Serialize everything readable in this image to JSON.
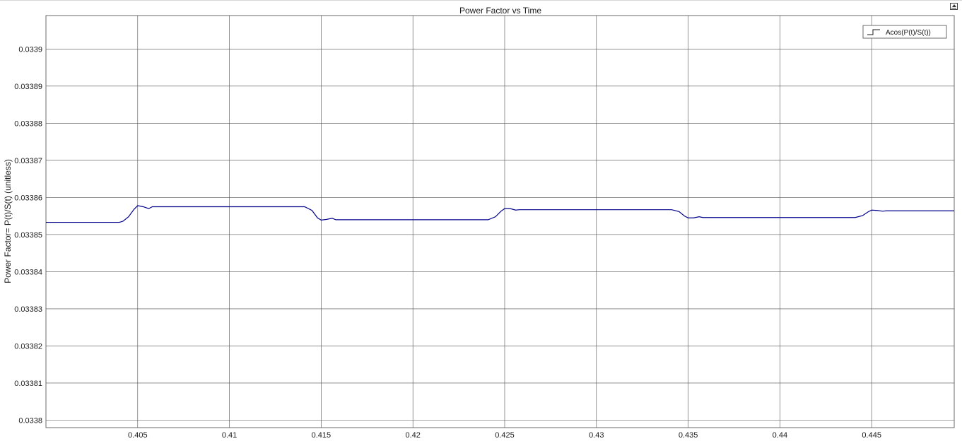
{
  "chart_data": {
    "type": "line",
    "title": "Power Factor vs Time",
    "xlabel": "",
    "ylabel": "Power Factor= P(t)/S(t) (unitless)",
    "xlim": [
      0.4,
      0.4495
    ],
    "ylim": [
      0.033798,
      0.033909
    ],
    "x_ticks": [
      0.405,
      0.41,
      0.415,
      0.42,
      0.425,
      0.43,
      0.435,
      0.44,
      0.445
    ],
    "x_tick_labels": [
      "0.405",
      "0.41",
      "0.415",
      "0.42",
      "0.425",
      "0.43",
      "0.435",
      "0.44",
      "0.445"
    ],
    "y_ticks": [
      0.0338,
      0.03381,
      0.03382,
      0.03383,
      0.03384,
      0.03385,
      0.03386,
      0.03387,
      0.03388,
      0.03389,
      0.0339
    ],
    "y_tick_labels": [
      "0.0338",
      "0.03381",
      "0.03382",
      "0.03383",
      "0.03384",
      "0.03385",
      "0.03386",
      "0.03387",
      "0.03388",
      "0.03389",
      "0.0339"
    ],
    "grid": true,
    "legend_position": "top-right",
    "series": [
      {
        "name": "Acos(P(t)/S(t))",
        "color": "#00008b",
        "x": [
          0.4,
          0.404,
          0.4042,
          0.4045,
          0.4048,
          0.405,
          0.4053,
          0.4056,
          0.4058,
          0.406,
          0.4141,
          0.4145,
          0.4148,
          0.415,
          0.4153,
          0.4156,
          0.4158,
          0.416,
          0.4241,
          0.4245,
          0.4248,
          0.425,
          0.4253,
          0.4256,
          0.4258,
          0.426,
          0.4341,
          0.4345,
          0.4348,
          0.435,
          0.4353,
          0.4356,
          0.4358,
          0.436,
          0.4441,
          0.4445,
          0.4448,
          0.445,
          0.4453,
          0.4456,
          0.4458,
          0.446,
          0.4495
        ],
        "y": [
          0.0338533,
          0.0338533,
          0.0338536,
          0.0338548,
          0.0338568,
          0.0338578,
          0.0338575,
          0.033857,
          0.0338575,
          0.0338575,
          0.0338575,
          0.0338565,
          0.0338545,
          0.0338539,
          0.0338541,
          0.0338544,
          0.033854,
          0.033854,
          0.033854,
          0.0338548,
          0.0338563,
          0.033857,
          0.033857,
          0.0338566,
          0.0338567,
          0.0338567,
          0.0338567,
          0.0338562,
          0.033855,
          0.0338545,
          0.0338545,
          0.0338548,
          0.0338546,
          0.0338546,
          0.0338546,
          0.0338551,
          0.0338561,
          0.0338566,
          0.0338565,
          0.0338563,
          0.0338564,
          0.0338564,
          0.0338564
        ]
      }
    ]
  }
}
